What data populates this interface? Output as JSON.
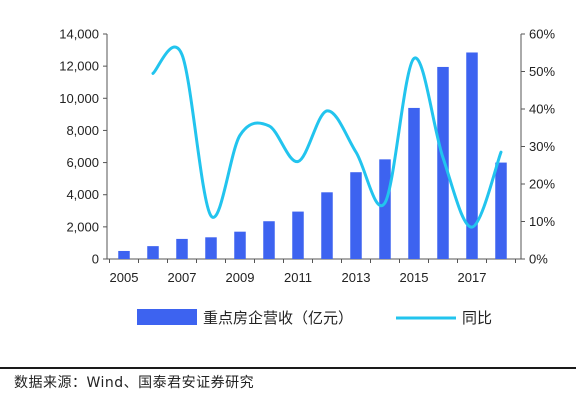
{
  "chart_data": {
    "type": "bar+line",
    "x": [
      2005,
      2006,
      2007,
      2008,
      2009,
      2010,
      2011,
      2012,
      2013,
      2014,
      2015,
      2016,
      2017,
      2018
    ],
    "x_tick_labels": [
      "2005",
      "2007",
      "2009",
      "2011",
      "2013",
      "2015",
      "2017"
    ],
    "series": [
      {
        "name": "重点房企营收（亿元）",
        "type": "bar",
        "axis": "left",
        "color": "#3D63F0",
        "values": [
          500,
          800,
          1250,
          1350,
          1700,
          2350,
          2950,
          4150,
          5400,
          6200,
          9400,
          11950,
          12850,
          6000
        ]
      },
      {
        "name": "同比",
        "type": "line",
        "axis": "right",
        "color": "#22C4EE",
        "values": [
          null,
          49.5,
          54.5,
          11.5,
          33,
          35.5,
          26,
          39.5,
          28.5,
          15,
          53.5,
          27,
          8.5,
          28.5
        ]
      }
    ],
    "y_left": {
      "ylim": [
        0,
        14000
      ],
      "ticks": [
        0,
        2000,
        4000,
        6000,
        8000,
        10000,
        12000,
        14000
      ],
      "tick_labels": [
        "0",
        "2,000",
        "4,000",
        "6,000",
        "8,000",
        "10,000",
        "12,000",
        "14,000"
      ]
    },
    "y_right": {
      "ylim": [
        0,
        60
      ],
      "ticks": [
        0,
        10,
        20,
        30,
        40,
        50,
        60
      ],
      "tick_labels": [
        "0%",
        "10%",
        "20%",
        "30%",
        "40%",
        "50%",
        "60%"
      ]
    },
    "grid": false,
    "legend": "bottom"
  },
  "source": "数据来源：Wind、国泰君安证券研究"
}
